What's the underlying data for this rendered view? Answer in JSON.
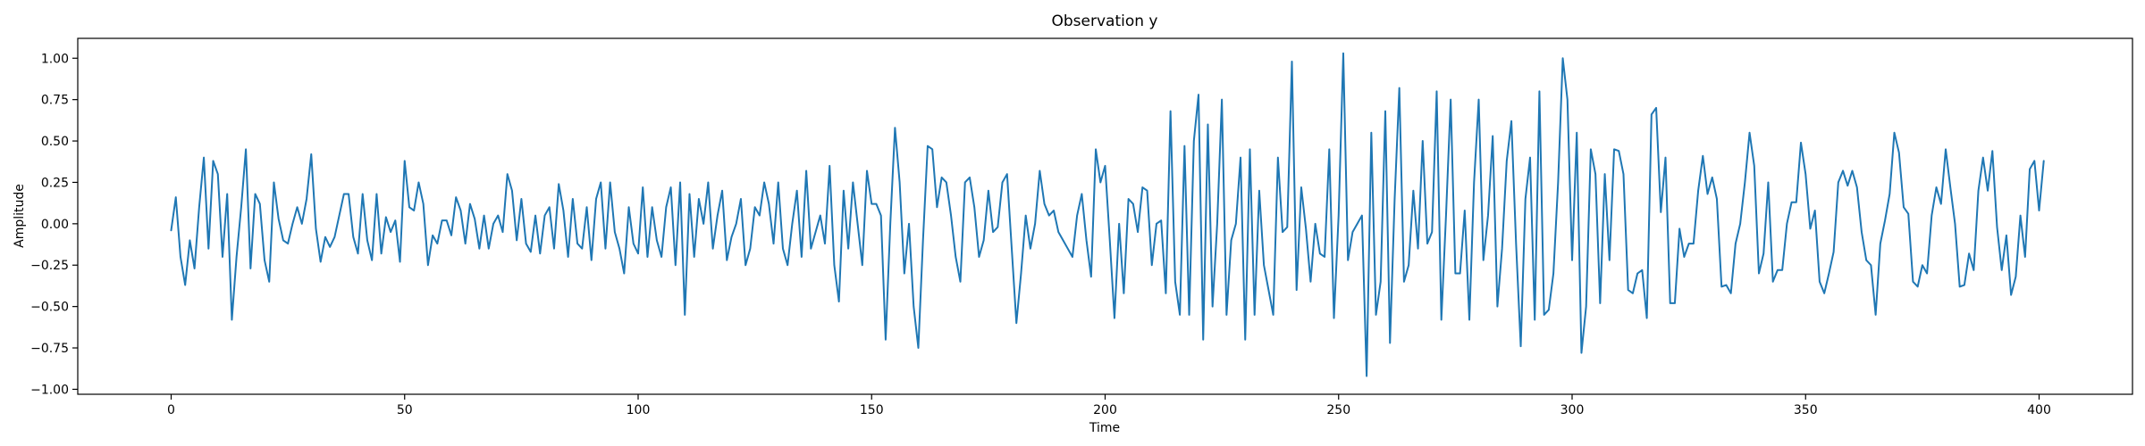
{
  "chart_data": {
    "type": "line",
    "title": "Observation y",
    "xlabel": "Time",
    "ylabel": "Amplitude",
    "xlim": [
      -20,
      420
    ],
    "ylim": [
      -1.03,
      1.12
    ],
    "grid": false,
    "x_ticks": [
      0,
      50,
      100,
      150,
      200,
      250,
      300,
      350,
      400
    ],
    "x_tick_labels": [
      "0",
      "50",
      "100",
      "150",
      "200",
      "250",
      "300",
      "350",
      "400"
    ],
    "y_ticks": [
      -1.0,
      -0.75,
      -0.5,
      -0.25,
      0.0,
      0.25,
      0.5,
      0.75,
      1.0
    ],
    "y_tick_labels": [
      "−1.00",
      "−0.75",
      "−0.50",
      "−0.25",
      "0.00",
      "0.25",
      "0.50",
      "0.75",
      "1.00"
    ],
    "series": [
      {
        "color": "#1f77b4",
        "x_start": 0,
        "x_step": 1,
        "values": [
          -0.04,
          0.16,
          -0.2,
          -0.37,
          -0.1,
          -0.27,
          0.1,
          0.4,
          -0.15,
          0.38,
          0.3,
          -0.2,
          0.18,
          -0.58,
          -0.2,
          0.1,
          0.45,
          -0.27,
          0.18,
          0.12,
          -0.22,
          -0.35,
          0.25,
          0.03,
          -0.1,
          -0.12,
          0.0,
          0.1,
          0.0,
          0.15,
          0.42,
          -0.03,
          -0.23,
          -0.08,
          -0.14,
          -0.08,
          0.05,
          0.18,
          0.18,
          -0.08,
          -0.18,
          0.18,
          -0.1,
          -0.22,
          0.18,
          -0.18,
          0.04,
          -0.05,
          0.02,
          -0.23,
          0.38,
          0.1,
          0.08,
          0.25,
          0.12,
          -0.25,
          -0.07,
          -0.12,
          0.02,
          0.02,
          -0.07,
          0.16,
          0.08,
          -0.12,
          0.12,
          0.03,
          -0.15,
          0.05,
          -0.15,
          0.0,
          0.05,
          -0.05,
          0.3,
          0.2,
          -0.1,
          0.15,
          -0.12,
          -0.17,
          0.05,
          -0.18,
          0.05,
          0.1,
          -0.15,
          0.24,
          0.08,
          -0.2,
          0.15,
          -0.12,
          -0.15,
          0.1,
          -0.22,
          0.15,
          0.25,
          -0.15,
          0.25,
          -0.05,
          -0.15,
          -0.3,
          0.1,
          -0.12,
          -0.18,
          0.22,
          -0.2,
          0.1,
          -0.1,
          -0.2,
          0.1,
          0.22,
          -0.25,
          0.25,
          -0.55,
          0.18,
          -0.2,
          0.15,
          0.0,
          0.25,
          -0.15,
          0.05,
          0.2,
          -0.22,
          -0.08,
          0.0,
          0.15,
          -0.25,
          -0.15,
          0.1,
          0.05,
          0.25,
          0.12,
          -0.12,
          0.25,
          -0.15,
          -0.25,
          0.0,
          0.2,
          -0.2,
          0.32,
          -0.15,
          -0.05,
          0.05,
          -0.12,
          0.35,
          -0.25,
          -0.47,
          0.2,
          -0.15,
          0.25,
          0.0,
          -0.25,
          0.32,
          0.12,
          0.12,
          0.05,
          -0.7,
          0.0,
          0.58,
          0.25,
          -0.3,
          0.0,
          -0.5,
          -0.75,
          -0.1,
          0.47,
          0.45,
          0.1,
          0.28,
          0.25,
          0.05,
          -0.2,
          -0.35,
          0.25,
          0.28,
          0.1,
          -0.2,
          -0.1,
          0.2,
          -0.05,
          -0.02,
          0.25,
          0.3,
          -0.15,
          -0.6,
          -0.3,
          0.05,
          -0.15,
          0.0,
          0.32,
          0.12,
          0.05,
          0.08,
          -0.05,
          -0.1,
          -0.15,
          -0.2,
          0.05,
          0.18,
          -0.1,
          -0.32,
          0.45,
          0.25,
          0.35,
          -0.1,
          -0.57,
          0.0,
          -0.42,
          0.15,
          0.12,
          -0.05,
          0.22,
          0.2,
          -0.25,
          0.0,
          0.02,
          -0.42,
          0.68,
          -0.35,
          -0.55,
          0.47,
          -0.55,
          0.5,
          0.78,
          -0.7,
          0.6,
          -0.5,
          0.0,
          0.75,
          -0.55,
          -0.1,
          0.0,
          0.4,
          -0.7,
          0.45,
          -0.55,
          0.2,
          -0.25,
          -0.4,
          -0.55,
          0.4,
          -0.05,
          -0.02,
          0.98,
          -0.4,
          0.22,
          -0.03,
          -0.35,
          0.0,
          -0.18,
          -0.2,
          0.45,
          -0.57,
          0.05,
          1.03,
          -0.22,
          -0.05,
          0.0,
          0.05,
          -0.92,
          0.55,
          -0.55,
          -0.35,
          0.68,
          -0.72,
          0.15,
          0.82,
          -0.35,
          -0.25,
          0.2,
          -0.15,
          0.5,
          -0.12,
          -0.05,
          0.8,
          -0.58,
          0.05,
          0.75,
          -0.3,
          -0.3,
          0.08,
          -0.58,
          0.25,
          0.75,
          -0.22,
          0.05,
          0.53,
          -0.5,
          -0.15,
          0.38,
          0.62,
          -0.12,
          -0.74,
          0.15,
          0.4,
          -0.58,
          0.8,
          -0.55,
          -0.52,
          -0.3,
          0.25,
          1.0,
          0.75,
          -0.22,
          0.55,
          -0.78,
          -0.5,
          0.45,
          0.3,
          -0.48,
          0.3,
          -0.22,
          0.45,
          0.44,
          0.3,
          -0.4,
          -0.42,
          -0.3,
          -0.28,
          -0.57,
          0.66,
          0.7,
          0.07,
          0.4,
          -0.48,
          -0.48,
          -0.03,
          -0.2,
          -0.12,
          -0.12,
          0.2,
          0.41,
          0.18,
          0.28,
          0.15,
          -0.38,
          -0.37,
          -0.42,
          -0.12,
          0.0,
          0.25,
          0.55,
          0.35,
          -0.3,
          -0.18,
          0.25,
          -0.35,
          -0.28,
          -0.28,
          0.0,
          0.13,
          0.13,
          0.49,
          0.3,
          -0.03,
          0.08,
          -0.35,
          -0.42,
          -0.3,
          -0.17,
          0.25,
          0.32,
          0.23,
          0.32,
          0.22,
          -0.05,
          -0.22,
          -0.25,
          -0.55,
          -0.12,
          0.02,
          0.18,
          0.55,
          0.43,
          0.1,
          0.06,
          -0.35,
          -0.38,
          -0.25,
          -0.3,
          0.05,
          0.22,
          0.12,
          0.45,
          0.22,
          0.0,
          -0.38,
          -0.37,
          -0.18,
          -0.28,
          0.2,
          0.4,
          0.2,
          0.44,
          -0.02,
          -0.28,
          -0.07,
          -0.43,
          -0.32,
          0.05,
          -0.2,
          0.33,
          0.38,
          0.08,
          0.38
        ]
      }
    ]
  }
}
